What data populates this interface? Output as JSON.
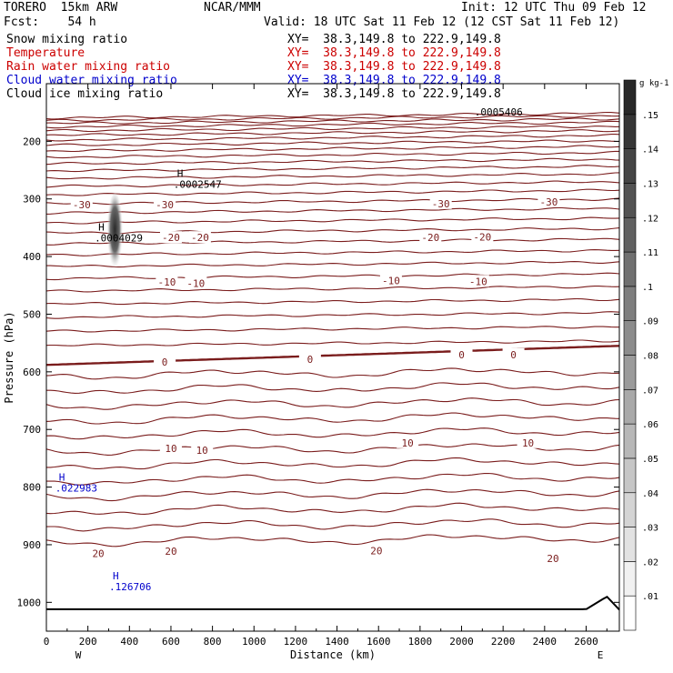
{
  "header": {
    "model": "TORERO  15km ARW",
    "forecast": "Fcst:    54 h",
    "org": "NCAR/MMM",
    "init": "Init: 12 UTC Thu 09 Feb 12",
    "valid": "Valid: 18 UTC Sat 11 Feb 12 (12 CST Sat 11 Feb 12)"
  },
  "fields": [
    {
      "name": "Snow mixing ratio",
      "xy": "XY=  38.3,149.8 to 222.9,149.8",
      "color": "#000000"
    },
    {
      "name": "Temperature",
      "xy": "XY=  38.3,149.8 to 222.9,149.8",
      "color": "#cc0000"
    },
    {
      "name": "Rain water mixing ratio",
      "xy": "XY=  38.3,149.8 to 222.9,149.8",
      "color": "#cc0000"
    },
    {
      "name": "Cloud water mixing ratio",
      "xy": "XY=  38.3,149.8 to 222.9,149.8",
      "color": "#0000cc"
    },
    {
      "name": "Cloud ice mixing ratio",
      "xy": "XY=  38.3,149.8 to 222.9,149.8",
      "color": "#000000"
    }
  ],
  "colors": {
    "isotherm": "#7a1c1c",
    "cloud_water": "#0000cc",
    "terrain": "#000000"
  },
  "chart_data": {
    "type": "contour-cross-section",
    "xlabel": "Distance (km)",
    "ylabel": "Pressure (hPa)",
    "xlim": [
      0,
      2760
    ],
    "ylim": [
      1050,
      100
    ],
    "x_ticks": [
      0,
      200,
      400,
      600,
      800,
      1000,
      1200,
      1400,
      1600,
      1800,
      2000,
      2200,
      2400,
      2600
    ],
    "y_ticks": [
      200,
      300,
      400,
      500,
      600,
      700,
      800,
      900,
      1000
    ],
    "x_end_labels": {
      "left": "W",
      "right": "E"
    },
    "colorbar": {
      "unit": "g kg-1",
      "ticks": [
        0.01,
        0.02,
        0.03,
        0.04,
        0.05,
        0.06,
        0.07,
        0.08,
        0.09,
        0.1,
        0.11,
        0.12,
        0.13,
        0.14,
        0.15
      ],
      "tick_labels": [
        ".01",
        ".02",
        ".03",
        ".04",
        ".05",
        ".06",
        ".07",
        ".08",
        ".09",
        ".1",
        ".11",
        ".12",
        ".13",
        ".14",
        ".15"
      ]
    },
    "isotherms": [
      {
        "temp": -30,
        "labels": [
          {
            "x": 170,
            "p": 310
          },
          {
            "x": 570,
            "p": 310
          },
          {
            "x": 1900,
            "p": 308
          },
          {
            "x": 2420,
            "p": 305
          }
        ]
      },
      {
        "temp": -20,
        "labels": [
          {
            "x": 600,
            "p": 367
          },
          {
            "x": 740,
            "p": 367
          },
          {
            "x": 1850,
            "p": 367
          },
          {
            "x": 2100,
            "p": 366
          }
        ]
      },
      {
        "temp": -10,
        "labels": [
          {
            "x": 580,
            "p": 444
          },
          {
            "x": 720,
            "p": 446
          },
          {
            "x": 1660,
            "p": 442
          },
          {
            "x": 2080,
            "p": 443
          }
        ]
      },
      {
        "temp": 0,
        "labels": [
          {
            "x": 570,
            "p": 583
          },
          {
            "x": 1270,
            "p": 578
          },
          {
            "x": 2000,
            "p": 570
          },
          {
            "x": 2250,
            "p": 570
          }
        ]
      },
      {
        "temp": 10,
        "labels": [
          {
            "x": 600,
            "p": 733
          },
          {
            "x": 750,
            "p": 736
          },
          {
            "x": 1740,
            "p": 723
          },
          {
            "x": 2320,
            "p": 723
          }
        ]
      },
      {
        "temp": 20,
        "labels": [
          {
            "x": 250,
            "p": 915
          },
          {
            "x": 600,
            "p": 911
          },
          {
            "x": 1590,
            "p": 910
          },
          {
            "x": 2440,
            "p": 924
          }
        ]
      }
    ],
    "maxima": [
      {
        "field": "Snow mixing ratio",
        "symbol": "H",
        "value": ".0002547",
        "x": 630,
        "p": 262
      },
      {
        "field": "Cloud ice mixing ratio",
        "symbol": "H",
        "value": ".0004029",
        "x": 250,
        "p": 355
      },
      {
        "field": "Cloud water mixing ratio",
        "symbol": "H",
        "value": ".022983",
        "x": 60,
        "p": 789
      },
      {
        "field": "Rain water mixing ratio",
        "symbol": "H",
        "value": ".126706",
        "x": 320,
        "p": 960
      },
      {
        "field": "Cloud ice mixing ratio",
        "symbol": "",
        "value": ".0005406",
        "x": 2080,
        "p": 136
      }
    ],
    "shaded_snow": {
      "x": 330,
      "p_top": 290,
      "p_bottom": 430,
      "max": 0.15
    }
  }
}
